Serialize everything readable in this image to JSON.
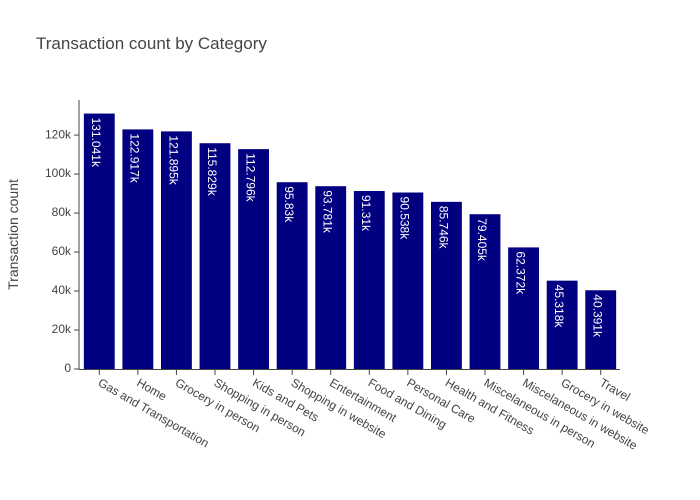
{
  "chart_data": {
    "type": "bar",
    "title": "Transaction count by Category",
    "xlabel": "",
    "ylabel": "Transaction count",
    "categories": [
      "Gas and Transportation",
      "Home",
      "Grocery in person",
      "Shopping in person",
      "Kids and Pets",
      "Shopping in website",
      "Entertainment",
      "Food and Dining",
      "Personal Care",
      "Health and Fitness",
      "Miscelaneous in person",
      "Miscelaneous in website",
      "Grocery in website",
      "Travel"
    ],
    "values": [
      131041,
      122917,
      121895,
      115829,
      112796,
      95830,
      93781,
      91310,
      90538,
      85746,
      79405,
      62372,
      45318,
      40391
    ],
    "data_labels": [
      "131.041k",
      "122.917k",
      "121.895k",
      "115.829k",
      "112.796k",
      "95.83k",
      "93.781k",
      "91.31k",
      "90.538k",
      "85.746k",
      "79.405k",
      "62.372k",
      "45.318k",
      "40.391k"
    ],
    "ylim": [
      0,
      138000
    ],
    "y_ticks": [
      0,
      20000,
      40000,
      60000,
      80000,
      100000,
      120000
    ],
    "y_tick_labels": [
      "0",
      "20k",
      "40k",
      "60k",
      "80k",
      "100k",
      "120k"
    ],
    "bar_color": "#000080",
    "grid": false,
    "legend": "none"
  }
}
